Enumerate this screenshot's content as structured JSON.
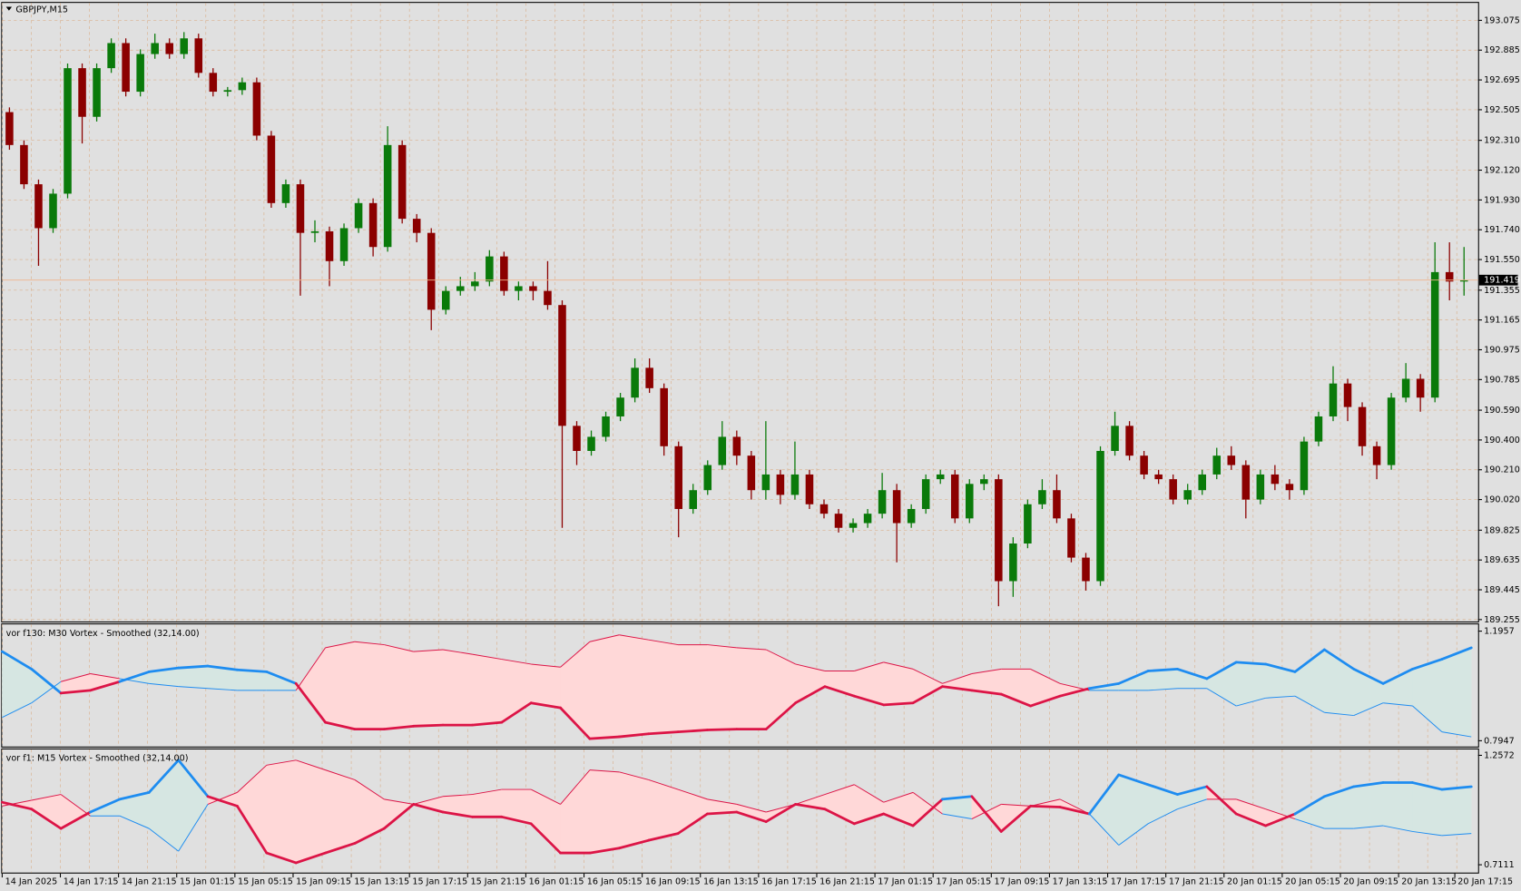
{
  "chart_data": [
    {
      "type": "candlestick",
      "title": "GBPJPY,M15",
      "ohlc": [
        [
          192.49,
          192.52,
          192.25,
          192.28
        ],
        [
          192.28,
          192.31,
          192.0,
          192.03
        ],
        [
          192.03,
          192.06,
          191.51,
          191.75
        ],
        [
          191.75,
          192.0,
          191.72,
          191.97
        ],
        [
          191.97,
          192.8,
          191.94,
          192.77
        ],
        [
          192.77,
          192.8,
          192.29,
          192.46
        ],
        [
          192.46,
          192.8,
          192.43,
          192.77
        ],
        [
          192.77,
          192.96,
          192.74,
          192.93
        ],
        [
          192.93,
          192.96,
          192.59,
          192.62
        ],
        [
          192.62,
          192.89,
          192.59,
          192.86
        ],
        [
          192.86,
          192.99,
          192.83,
          192.93
        ],
        [
          192.93,
          192.96,
          192.83,
          192.86
        ],
        [
          192.86,
          193.0,
          192.83,
          192.96
        ],
        [
          192.96,
          192.99,
          192.71,
          192.74
        ],
        [
          192.74,
          192.77,
          192.59,
          192.62
        ],
        [
          192.62,
          192.65,
          192.59,
          192.63
        ],
        [
          192.63,
          192.71,
          192.6,
          192.68
        ],
        [
          192.68,
          192.71,
          192.31,
          192.34
        ],
        [
          192.34,
          192.37,
          191.88,
          191.91
        ],
        [
          191.91,
          192.06,
          191.88,
          192.03
        ],
        [
          192.03,
          192.06,
          191.32,
          191.72
        ],
        [
          191.72,
          191.8,
          191.66,
          191.73
        ],
        [
          191.73,
          191.76,
          191.38,
          191.54
        ],
        [
          191.54,
          191.78,
          191.51,
          191.75
        ],
        [
          191.75,
          191.94,
          191.72,
          191.91
        ],
        [
          191.91,
          191.94,
          191.57,
          191.63
        ],
        [
          191.63,
          192.4,
          191.6,
          192.28
        ],
        [
          192.28,
          192.31,
          191.78,
          191.81
        ],
        [
          191.81,
          191.84,
          191.66,
          191.72
        ],
        [
          191.72,
          191.75,
          191.1,
          191.23
        ],
        [
          191.23,
          191.38,
          191.2,
          191.35
        ],
        [
          191.35,
          191.44,
          191.32,
          191.38
        ],
        [
          191.38,
          191.47,
          191.35,
          191.41
        ],
        [
          191.41,
          191.61,
          191.38,
          191.57
        ],
        [
          191.57,
          191.6,
          191.32,
          191.35
        ],
        [
          191.35,
          191.41,
          191.29,
          191.38
        ],
        [
          191.38,
          191.41,
          191.29,
          191.35
        ],
        [
          191.35,
          191.54,
          191.23,
          191.26
        ],
        [
          191.26,
          191.29,
          189.84,
          190.49
        ],
        [
          190.49,
          190.52,
          190.24,
          190.33
        ],
        [
          190.33,
          190.46,
          190.3,
          190.42
        ],
        [
          190.42,
          190.58,
          190.39,
          190.55
        ],
        [
          190.55,
          190.7,
          190.52,
          190.67
        ],
        [
          190.67,
          190.92,
          190.64,
          190.86
        ],
        [
          190.86,
          190.92,
          190.7,
          190.73
        ],
        [
          190.73,
          190.76,
          190.3,
          190.36
        ],
        [
          190.36,
          190.39,
          189.78,
          189.96
        ],
        [
          189.96,
          190.12,
          189.93,
          190.08
        ],
        [
          190.08,
          190.27,
          190.05,
          190.24
        ],
        [
          190.24,
          190.52,
          190.21,
          190.42
        ],
        [
          190.42,
          190.46,
          190.24,
          190.3
        ],
        [
          190.3,
          190.33,
          190.02,
          190.08
        ],
        [
          190.08,
          190.52,
          190.02,
          190.18
        ],
        [
          190.18,
          190.21,
          189.99,
          190.05
        ],
        [
          190.05,
          190.39,
          190.02,
          190.18
        ],
        [
          190.18,
          190.21,
          189.96,
          189.99
        ],
        [
          189.99,
          190.02,
          189.9,
          189.93
        ],
        [
          189.93,
          189.96,
          189.81,
          189.84
        ],
        [
          189.84,
          189.9,
          189.81,
          189.87
        ],
        [
          189.87,
          189.96,
          189.84,
          189.93
        ],
        [
          189.93,
          190.19,
          189.9,
          190.08
        ],
        [
          190.08,
          190.12,
          189.62,
          189.87
        ],
        [
          189.87,
          189.99,
          189.84,
          189.96
        ],
        [
          189.96,
          190.18,
          189.93,
          190.15
        ],
        [
          190.15,
          190.21,
          190.12,
          190.18
        ],
        [
          190.18,
          190.21,
          189.87,
          189.9
        ],
        [
          189.9,
          190.15,
          189.87,
          190.12
        ],
        [
          190.12,
          190.18,
          190.08,
          190.15
        ],
        [
          190.15,
          190.18,
          189.34,
          189.5
        ],
        [
          189.5,
          189.78,
          189.4,
          189.74
        ],
        [
          189.74,
          190.02,
          189.71,
          189.99
        ],
        [
          189.99,
          190.15,
          189.96,
          190.08
        ],
        [
          190.08,
          190.18,
          189.87,
          189.9
        ],
        [
          189.9,
          189.93,
          189.62,
          189.65
        ],
        [
          189.65,
          189.68,
          189.44,
          189.5
        ],
        [
          189.5,
          190.36,
          189.47,
          190.33
        ],
        [
          190.33,
          190.58,
          190.3,
          190.49
        ],
        [
          190.49,
          190.52,
          190.27,
          190.3
        ],
        [
          190.3,
          190.33,
          190.15,
          190.18
        ],
        [
          190.18,
          190.21,
          190.12,
          190.15
        ],
        [
          190.15,
          190.18,
          189.99,
          190.02
        ],
        [
          190.02,
          190.12,
          189.99,
          190.08
        ],
        [
          190.08,
          190.21,
          190.05,
          190.18
        ],
        [
          190.18,
          190.35,
          190.15,
          190.3
        ],
        [
          190.3,
          190.36,
          190.21,
          190.24
        ],
        [
          190.24,
          190.27,
          189.9,
          190.02
        ],
        [
          190.02,
          190.21,
          189.99,
          190.18
        ],
        [
          190.18,
          190.24,
          190.08,
          190.12
        ],
        [
          190.12,
          190.15,
          190.02,
          190.08
        ],
        [
          190.08,
          190.42,
          190.05,
          190.39
        ],
        [
          190.39,
          190.58,
          190.36,
          190.55
        ],
        [
          190.55,
          190.87,
          190.52,
          190.76
        ],
        [
          190.76,
          190.79,
          190.52,
          190.61
        ],
        [
          190.61,
          190.64,
          190.3,
          190.36
        ],
        [
          190.36,
          190.39,
          190.15,
          190.24
        ],
        [
          190.24,
          190.7,
          190.21,
          190.67
        ],
        [
          190.67,
          190.89,
          190.64,
          190.79
        ],
        [
          190.79,
          190.82,
          190.58,
          190.67
        ],
        [
          190.67,
          191.66,
          190.64,
          191.47
        ],
        [
          191.47,
          191.66,
          191.29,
          191.41
        ],
        [
          191.41,
          191.63,
          191.32,
          191.42
        ]
      ],
      "ylim": [
        189.243,
        193.186
      ],
      "yticks": [
        193.075,
        192.885,
        192.695,
        192.505,
        {
          "value": 192.31,
          "label": "192.310"
        },
        {
          "value": 192.12,
          "label": "192.120"
        },
        {
          "value": 191.93,
          "label": "191.930"
        },
        {
          "value": 191.74,
          "label": "191.740"
        },
        {
          "value": 191.55,
          "label": "191.550"
        },
        191.355,
        191.165,
        190.975,
        190.785,
        {
          "value": 190.59,
          "label": "190.590"
        },
        {
          "value": 190.4,
          "label": "190.400"
        },
        {
          "value": 190.21,
          "label": "190.210"
        },
        {
          "value": 190.02,
          "label": "190.020"
        },
        189.825,
        189.635,
        189.445,
        189.255
      ],
      "current_price": 191.419,
      "grid": true,
      "bull_color": "#0a7a0a",
      "bear_color": "#8b0000",
      "price_line_color": "#f0b48c"
    },
    {
      "type": "line",
      "title": "vor f130: M30 Vortex - Smoothed (32,14.00)",
      "ylim": [
        0.7734,
        1.2205
      ],
      "yticks": [
        1.1957,
        0.7947
      ],
      "series": [
        {
          "values": [
            1.121,
            1.057,
            0.969,
            0.979,
            1.011,
            1.047,
            1.061,
            1.068,
            1.054,
            1.047,
            1.004,
            0.862,
            0.837,
            0.837,
            0.848,
            0.852,
            0.852,
            0.862,
            0.933,
            0.915,
            0.802,
            0.809,
            0.82,
            0.827,
            0.834,
            0.837,
            0.837,
            0.933,
            0.993,
            0.958,
            0.926,
            0.933,
            0.993,
            0.979,
            0.965,
            0.922,
            0.958,
            0.986,
            1.004,
            1.05,
            1.057,
            1.022,
            1.082,
            1.075,
            1.047,
            1.128,
            1.057,
            1.004,
            1.057,
            1.093,
            1.135
          ]
        },
        {
          "values": [
            0.88,
            0.933,
            1.011,
            1.04,
            1.022,
            1.004,
            0.993,
            0.986,
            0.979,
            0.979,
            0.979,
            1.135,
            1.157,
            1.146,
            1.121,
            1.128,
            1.111,
            1.093,
            1.075,
            1.064,
            1.157,
            1.182,
            1.164,
            1.146,
            1.146,
            1.135,
            1.128,
            1.075,
            1.05,
            1.05,
            1.082,
            1.057,
            1.004,
            1.04,
            1.057,
            1.057,
            1.004,
            0.979,
            0.979,
            0.979,
            0.986,
            0.986,
            0.922,
            0.951,
            0.958,
            0.898,
            0.887,
            0.933,
            0.922,
            0.827,
            0.809
          ]
        }
      ],
      "up_color": "#1e8cf0",
      "down_color": "#dc1446",
      "up_fill": "#d6e6e2",
      "down_fill": "#ffd8d8"
    },
    {
      "type": "line",
      "title": "vor f1: M15 Vortex - Smoothed (32,14.00)",
      "ylim": [
        0.6721,
        1.2865
      ],
      "yticks": [
        1.2572,
        0.7111
      ],
      "series": [
        {
          "values": [
            1.023,
            0.989,
            0.892,
            0.974,
            1.038,
            1.072,
            1.233,
            1.052,
            1.004,
            0.77,
            0.721,
            0.77,
            0.818,
            0.892,
            1.013,
            0.974,
            0.95,
            0.95,
            0.916,
            0.77,
            0.77,
            0.794,
            0.833,
            0.867,
            0.965,
            0.974,
            0.926,
            1.013,
            0.989,
            0.916,
            0.965,
            0.906,
            1.038,
            1.052,
            0.877,
            1.004,
            0.999,
            0.965,
            1.16,
            1.111,
            1.062,
            1.101,
            0.965,
            0.906,
            0.965,
            1.052,
            1.101,
            1.121,
            1.121,
            1.087,
            1.101
          ]
        },
        {
          "values": [
            1.004,
            1.033,
            1.062,
            0.955,
            0.955,
            0.892,
            0.779,
            1.013,
            1.072,
            1.208,
            1.233,
            1.184,
            1.135,
            1.038,
            1.013,
            1.052,
            1.062,
            1.087,
            1.087,
            1.013,
            1.184,
            1.174,
            1.135,
            1.087,
            1.038,
            1.013,
            0.974,
            1.013,
            1.062,
            1.111,
            1.023,
            1.072,
            0.965,
            0.94,
            1.013,
            1.004,
            1.038,
            0.965,
            0.809,
            0.916,
            0.989,
            1.038,
            1.038,
            0.989,
            0.94,
            0.892,
            0.892,
            0.906,
            0.877,
            0.857,
            0.867
          ]
        }
      ],
      "up_color": "#1e8cf0",
      "down_color": "#dc1446",
      "up_fill": "#d6e6e2",
      "down_fill": "#ffd8d8"
    }
  ],
  "time_labels": [
    "14 Jan 2025",
    "14 Jan 17:15",
    "14 Jan 21:15",
    "15 Jan 01:15",
    "15 Jan 05:15",
    "15 Jan 09:15",
    "15 Jan 13:15",
    "15 Jan 17:15",
    "15 Jan 21:15",
    "16 Jan 01:15",
    "16 Jan 05:15",
    "16 Jan 09:15",
    "16 Jan 13:15",
    "16 Jan 17:15",
    "16 Jan 21:15",
    "17 Jan 01:15",
    "17 Jan 05:15",
    "17 Jan 09:15",
    "17 Jan 13:15",
    "17 Jan 17:15",
    "17 Jan 21:15",
    "20 Jan 01:15",
    "20 Jan 05:15",
    "20 Jan 09:15",
    "20 Jan 13:15",
    "20 Jan 17:15"
  ]
}
